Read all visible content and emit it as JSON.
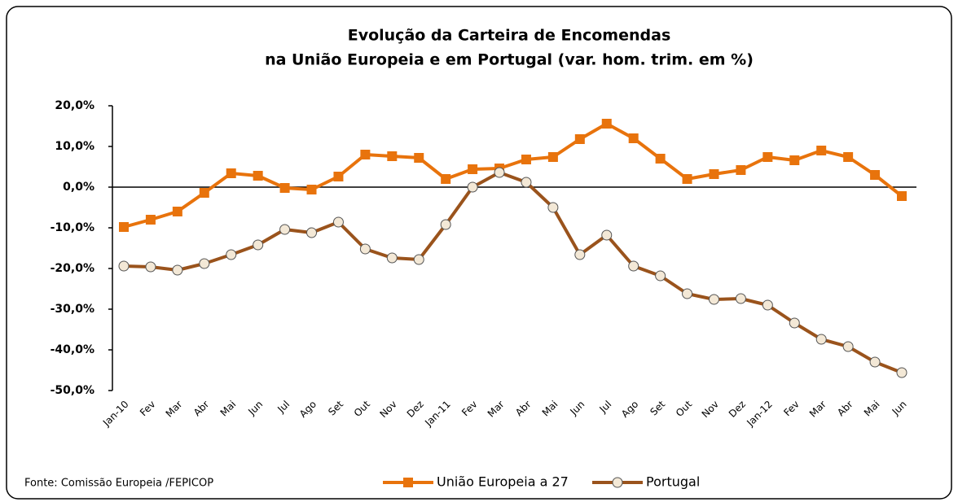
{
  "chart_data": {
    "type": "line",
    "title": [
      "Evolução da Carteira de Encomendas",
      "na União Europeia e em Portugal (var. hom. trim. em %)"
    ],
    "source": "Fonte: Comissão Europeia /FEPICOP",
    "categories": [
      "Jan-10",
      "Fev",
      "Mar",
      "Abr",
      "Mai",
      "Jun",
      "Jul",
      "Ago",
      "Set",
      "Out",
      "Nov",
      "Dez",
      "Jan-11",
      "Fev",
      "Mar",
      "Abr",
      "Mai",
      "Jun",
      "Jul",
      "Ago",
      "Set",
      "Out",
      "Nov",
      "Dez",
      "Jan-12",
      "Fev",
      "Mar",
      "Abr",
      "Mai",
      "Jun"
    ],
    "series": [
      {
        "name": "União Europeia a 27",
        "color": "#e8730c",
        "marker": "square",
        "values": [
          -9.8,
          -8,
          -6,
          -1.4,
          3.4,
          2.8,
          -0.2,
          -0.6,
          2.6,
          8,
          7.6,
          7.2,
          2,
          4.4,
          4.6,
          6.8,
          7.4,
          11.8,
          15.6,
          12,
          7,
          2,
          3.2,
          4.2,
          7.4,
          6.6,
          9,
          7.4,
          3,
          -2.2
        ]
      },
      {
        "name": "Portugal",
        "color": "#9a531c",
        "marker": "circle",
        "values": [
          -19.4,
          -19.6,
          -20.4,
          -18.8,
          -16.6,
          -14.2,
          -10.4,
          -11.2,
          -8.6,
          -15.2,
          -17.4,
          -17.8,
          -9.2,
          0,
          3.6,
          1.2,
          -5,
          -16.6,
          -11.8,
          -19.4,
          -21.8,
          -26.2,
          -27.6,
          -27.4,
          -29,
          -33.4,
          -37.4,
          -39.2,
          -43,
          -45.6
        ]
      }
    ],
    "ylim": [
      -50,
      20
    ],
    "yticks": [
      {
        "value": -50,
        "label": "-50,0%"
      },
      {
        "value": -40,
        "label": "-40,0%"
      },
      {
        "value": -30,
        "label": "-30,0%"
      },
      {
        "value": -20,
        "label": "-20,0%"
      },
      {
        "value": -10,
        "label": "-10,0%"
      },
      {
        "value": 0,
        "label": "0,0%"
      },
      {
        "value": 10,
        "label": "10,0%"
      },
      {
        "value": 20,
        "label": "20,0%"
      }
    ],
    "legend": "bottom"
  }
}
